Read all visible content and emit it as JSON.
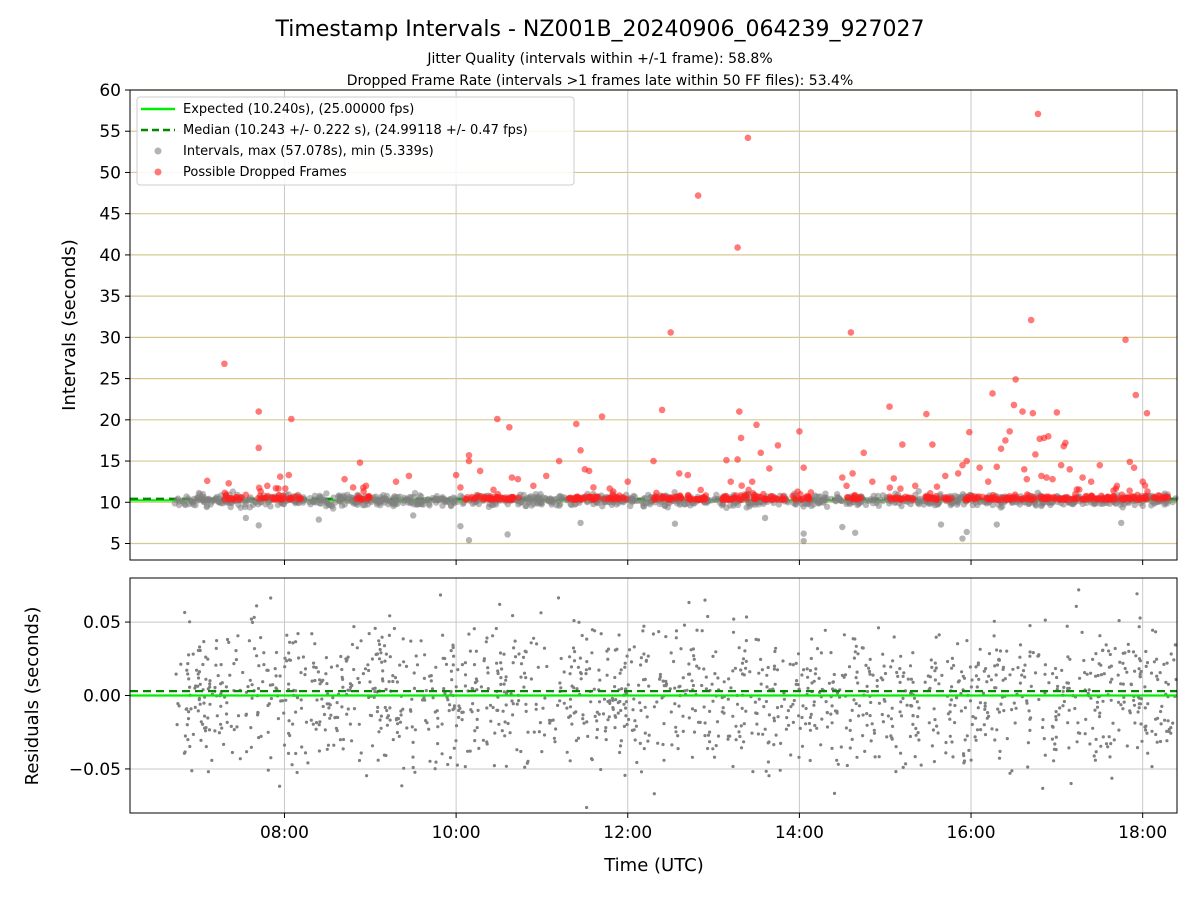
{
  "title": "Timestamp Intervals - NZ001B_20240906_064239_927027",
  "subtitle1": "Jitter Quality (intervals within +/-1 frame): 58.8%",
  "subtitle2": "Dropped Frame Rate (intervals >1 frames late within 50 FF files): 53.4%",
  "colors": {
    "expected": "#00ee00",
    "median": "#008800",
    "intervals": "#808080",
    "dropped": "#ff2020",
    "hgrid_top": "#d8c890",
    "grid": "#c8c8c8"
  },
  "chart_data": [
    {
      "id": "intervals",
      "type": "scatter",
      "ylabel": "Intervals (seconds)",
      "ylim": [
        3,
        60
      ],
      "xlim": [
        6.2,
        18.4
      ],
      "yticks": [
        5,
        10,
        15,
        20,
        25,
        30,
        35,
        40,
        45,
        50,
        55,
        60
      ],
      "yticklabels": [
        "5",
        "10",
        "15",
        "20",
        "25",
        "30",
        "35",
        "40",
        "45",
        "50",
        "55",
        "60"
      ],
      "xticks": [
        8,
        10,
        12,
        14,
        16,
        18
      ],
      "expected_value": 10.24,
      "median_value": 10.243,
      "legend_position": "upper-left",
      "legend": [
        {
          "label": "Expected (10.240s), (25.00000 fps)",
          "style": "solid-line",
          "color": "#00ee00"
        },
        {
          "label": "Median (10.243 +/- 0.222 s), (24.99118 +/- 0.47 fps)",
          "style": "dashed-line",
          "color": "#008800"
        },
        {
          "label": "Intervals, max (57.078s), min (5.339s)",
          "style": "marker",
          "color": "#808080"
        },
        {
          "label": "Possible Dropped Frames",
          "style": "marker",
          "color": "#ff2020"
        }
      ],
      "series": [
        {
          "name": "Intervals, max (57.078s), min (5.339s)",
          "x_range": [
            6.72,
            18.4
          ],
          "count": 1100,
          "center": 10.24,
          "spread": 0.6,
          "outliers": [
            [
              7.7,
              7.2
            ],
            [
              7.55,
              8.1
            ],
            [
              10.05,
              7.1
            ],
            [
              10.15,
              5.4
            ],
            [
              10.6,
              6.1
            ],
            [
              11.45,
              7.5
            ],
            [
              13.6,
              8.1
            ],
            [
              14.05,
              5.3
            ],
            [
              14.05,
              6.2
            ],
            [
              14.5,
              7.0
            ],
            [
              14.65,
              6.3
            ],
            [
              15.65,
              7.3
            ],
            [
              15.9,
              5.6
            ],
            [
              15.95,
              6.4
            ],
            [
              16.3,
              7.3
            ],
            [
              17.75,
              7.5
            ],
            [
              12.55,
              7.4
            ],
            [
              9.5,
              8.4
            ],
            [
              8.4,
              7.9
            ]
          ]
        },
        {
          "name": "Possible Dropped Frames",
          "segments": [
            [
              7.3,
              7.5
            ],
            [
              7.68,
              8.2
            ],
            [
              8.82,
              9.0
            ],
            [
              10.1,
              10.75
            ],
            [
              11.3,
              12.0
            ],
            [
              12.3,
              12.95
            ],
            [
              13.1,
              13.85
            ],
            [
              13.92,
              14.15
            ],
            [
              14.55,
              14.72
            ],
            [
              15.05,
              15.35
            ],
            [
              15.45,
              15.78
            ],
            [
              15.92,
              17.85
            ],
            [
              17.75,
              18.3
            ]
          ],
          "segment_count": 300,
          "segment_center": 10.3,
          "points": [
            [
              7.3,
              26.8
            ],
            [
              7.1,
              12.6
            ],
            [
              7.35,
              12.3
            ],
            [
              7.55,
              10.9
            ],
            [
              7.7,
              21.0
            ],
            [
              7.7,
              16.6
            ],
            [
              7.8,
              12.0
            ],
            [
              7.95,
              13.1
            ],
            [
              7.9,
              11.7
            ],
            [
              8.05,
              13.3
            ],
            [
              8.08,
              20.1
            ],
            [
              8.7,
              12.8
            ],
            [
              8.88,
              14.8
            ],
            [
              8.95,
              12.0
            ],
            [
              8.8,
              11.8
            ],
            [
              9.3,
              12.5
            ],
            [
              9.45,
              13.2
            ],
            [
              10.0,
              13.3
            ],
            [
              10.05,
              11.8
            ],
            [
              10.15,
              15.0
            ],
            [
              10.15,
              15.7
            ],
            [
              10.28,
              13.8
            ],
            [
              10.48,
              20.1
            ],
            [
              10.62,
              19.1
            ],
            [
              10.65,
              13.0
            ],
            [
              10.72,
              12.8
            ],
            [
              10.9,
              12.0
            ],
            [
              11.05,
              13.2
            ],
            [
              11.2,
              15.0
            ],
            [
              11.4,
              19.5
            ],
            [
              11.45,
              16.3
            ],
            [
              11.5,
              14.0
            ],
            [
              11.55,
              13.8
            ],
            [
              11.6,
              11.8
            ],
            [
              11.7,
              20.4
            ],
            [
              12.0,
              12.5
            ],
            [
              12.3,
              15.0
            ],
            [
              12.4,
              21.2
            ],
            [
              12.5,
              30.6
            ],
            [
              12.6,
              13.5
            ],
            [
              12.7,
              13.3
            ],
            [
              12.82,
              47.2
            ],
            [
              12.85,
              11.5
            ],
            [
              13.15,
              15.1
            ],
            [
              13.2,
              12.5
            ],
            [
              13.28,
              15.2
            ],
            [
              13.28,
              40.9
            ],
            [
              13.3,
              21.0
            ],
            [
              13.32,
              17.8
            ],
            [
              13.4,
              54.2
            ],
            [
              13.45,
              12.5
            ],
            [
              13.5,
              19.4
            ],
            [
              13.55,
              16.0
            ],
            [
              13.65,
              14.1
            ],
            [
              13.75,
              16.9
            ],
            [
              14.0,
              18.6
            ],
            [
              14.05,
              14.2
            ],
            [
              14.5,
              13.0
            ],
            [
              14.55,
              12.0
            ],
            [
              14.6,
              30.6
            ],
            [
              14.62,
              13.5
            ],
            [
              14.75,
              16.0
            ],
            [
              14.85,
              12.5
            ],
            [
              15.05,
              21.6
            ],
            [
              15.1,
              12.9
            ],
            [
              15.2,
              17.0
            ],
            [
              15.35,
              12.0
            ],
            [
              15.48,
              20.7
            ],
            [
              15.55,
              17.0
            ],
            [
              15.7,
              13.2
            ],
            [
              15.85,
              13.5
            ],
            [
              15.9,
              14.5
            ],
            [
              15.95,
              15.0
            ],
            [
              15.98,
              18.5
            ],
            [
              16.1,
              14.2
            ],
            [
              16.2,
              12.5
            ],
            [
              16.25,
              23.2
            ],
            [
              16.3,
              14.3
            ],
            [
              16.35,
              16.5
            ],
            [
              16.4,
              17.5
            ],
            [
              16.45,
              18.6
            ],
            [
              16.5,
              21.8
            ],
            [
              16.52,
              24.9
            ],
            [
              16.6,
              21.0
            ],
            [
              16.62,
              14.0
            ],
            [
              16.65,
              12.8
            ],
            [
              16.7,
              32.1
            ],
            [
              16.72,
              20.8
            ],
            [
              16.75,
              15.8
            ],
            [
              16.78,
              57.1
            ],
            [
              16.8,
              17.7
            ],
            [
              16.82,
              13.2
            ],
            [
              16.85,
              17.8
            ],
            [
              16.88,
              13.0
            ],
            [
              16.9,
              18.0
            ],
            [
              16.95,
              12.8
            ],
            [
              17.0,
              20.9
            ],
            [
              17.05,
              14.5
            ],
            [
              17.08,
              16.8
            ],
            [
              17.1,
              17.2
            ],
            [
              17.15,
              14.0
            ],
            [
              17.3,
              13.0
            ],
            [
              17.4,
              12.5
            ],
            [
              17.5,
              14.5
            ],
            [
              17.7,
              12.0
            ],
            [
              17.8,
              29.7
            ],
            [
              17.85,
              14.9
            ],
            [
              17.9,
              14.2
            ],
            [
              17.92,
              23.0
            ],
            [
              18.0,
              12.5
            ],
            [
              18.05,
              20.8
            ]
          ]
        }
      ]
    },
    {
      "id": "residuals",
      "type": "scatter",
      "xlabel": "Time (UTC)",
      "ylabel": "Residuals (seconds)",
      "ylim": [
        -0.08,
        0.08
      ],
      "xlim": [
        6.2,
        18.4
      ],
      "yticks": [
        -0.05,
        0.0,
        0.05
      ],
      "yticklabels": [
        "−0.05",
        "0.00",
        "0.05"
      ],
      "xticks": [
        8,
        10,
        12,
        14,
        16,
        18
      ],
      "xticklabels": [
        "08:00",
        "10:00",
        "12:00",
        "14:00",
        "16:00",
        "18:00"
      ],
      "expected_value": 0.0,
      "median_value": 0.003,
      "series": [
        {
          "name": "",
          "x_range": [
            6.72,
            18.4
          ],
          "count": 1500,
          "center": 0.0,
          "spread": 0.04
        }
      ]
    }
  ]
}
